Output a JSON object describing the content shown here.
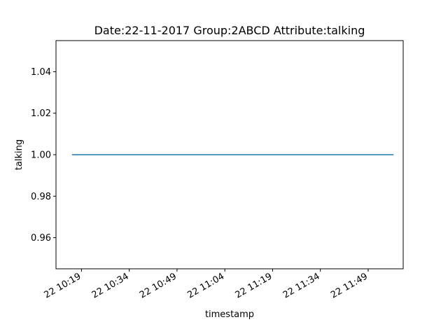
{
  "chart_data": {
    "type": "line",
    "title": "Date:22-11-2017  Group:2ABCD Attribute:talking",
    "xlabel": "timestamp",
    "ylabel": "talking",
    "x_is_time": true,
    "xlim": [
      "2017-11-22 10:11",
      "2017-11-22 12:00"
    ],
    "ylim": [
      0.945,
      1.055
    ],
    "x_ticks": [
      {
        "value": "2017-11-22 10:19",
        "label": "22 10:19"
      },
      {
        "value": "2017-11-22 10:34",
        "label": "22 10:34"
      },
      {
        "value": "2017-11-22 10:49",
        "label": "22 10:49"
      },
      {
        "value": "2017-11-22 11:04",
        "label": "22 11:04"
      },
      {
        "value": "2017-11-22 11:19",
        "label": "22 11:19"
      },
      {
        "value": "2017-11-22 11:34",
        "label": "22 11:34"
      },
      {
        "value": "2017-11-22 11:49",
        "label": "22 11:49"
      }
    ],
    "y_ticks": [
      {
        "value": 0.96,
        "label": "0.96"
      },
      {
        "value": 0.98,
        "label": "0.98"
      },
      {
        "value": 1.0,
        "label": "1.00"
      },
      {
        "value": 1.02,
        "label": "1.02"
      },
      {
        "value": 1.04,
        "label": "1.04"
      }
    ],
    "series": [
      {
        "color": "#1f77b4",
        "x": [
          "2017-11-22 10:16",
          "2017-11-22 11:57"
        ],
        "y": [
          1.0,
          1.0
        ]
      }
    ],
    "grid": false,
    "legend": "none"
  }
}
